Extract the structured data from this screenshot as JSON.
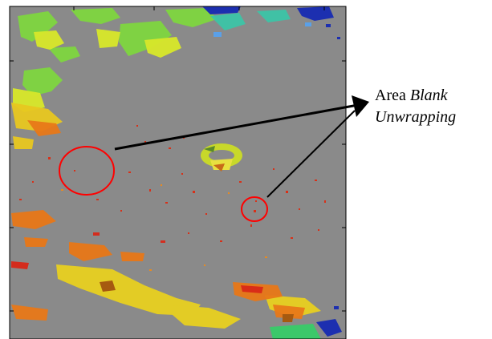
{
  "annotation": {
    "prefix": "Area",
    "line1_italic": "Blank",
    "line2_italic": "Unwrapping"
  },
  "colors": {
    "background_gray": "#8a8a8a",
    "circle_stroke": "#ff0000",
    "arrow": "#000000",
    "frame": "#000000"
  }
}
